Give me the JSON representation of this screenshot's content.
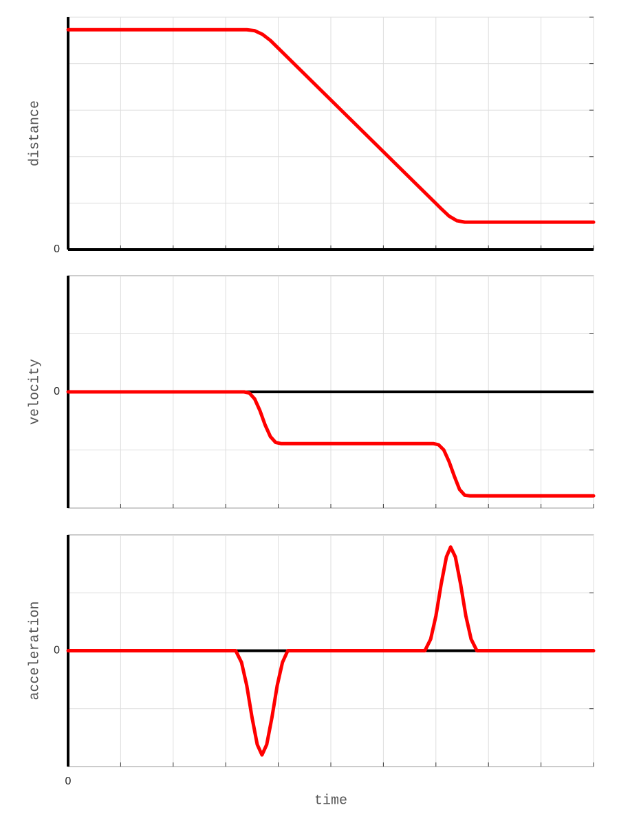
{
  "chart_data": [
    {
      "type": "line",
      "ylabel": "distance",
      "xlim": [
        0,
        10
      ],
      "ylim": [
        0,
        5
      ],
      "yticks": [
        0
      ],
      "ygrid": [
        1,
        2,
        3,
        4,
        5
      ],
      "xgrid": [
        1,
        2,
        3,
        4,
        5,
        6,
        7,
        8,
        9,
        10
      ],
      "zero_line": true,
      "grid": true,
      "series": [
        {
          "color": "#ff0000",
          "x": [
            0,
            3.4,
            3.55,
            3.7,
            3.85,
            7.1,
            7.25,
            7.4,
            7.55,
            10
          ],
          "values": [
            4.73,
            4.73,
            4.71,
            4.63,
            4.5,
            0.88,
            0.72,
            0.62,
            0.59,
            0.59
          ]
        }
      ]
    },
    {
      "type": "line",
      "ylabel": "velocity",
      "xlim": [
        0,
        10
      ],
      "ylim": [
        -2,
        2
      ],
      "yticks": [
        0
      ],
      "ygrid": [
        -1,
        1
      ],
      "xgrid": [
        1,
        2,
        3,
        4,
        5,
        6,
        7,
        8,
        9,
        10
      ],
      "zero_line": true,
      "grid": true,
      "series": [
        {
          "color": "#ff0000",
          "x": [
            0,
            3.35,
            3.45,
            3.55,
            3.65,
            3.75,
            3.85,
            3.95,
            4.05,
            6.95,
            7.05,
            7.15,
            7.25,
            7.35,
            7.45,
            7.55,
            7.65,
            10
          ],
          "values": [
            0,
            0,
            -0.02,
            -0.12,
            -0.32,
            -0.57,
            -0.77,
            -0.87,
            -0.89,
            -0.89,
            -0.91,
            -1.0,
            -1.2,
            -1.45,
            -1.68,
            -1.78,
            -1.79,
            -1.79
          ]
        }
      ]
    },
    {
      "type": "line",
      "ylabel": "acceleration",
      "xlabel": "time",
      "xlim": [
        0,
        10
      ],
      "ylim": [
        -2,
        2
      ],
      "yticks": [
        0
      ],
      "xticks": [
        0
      ],
      "ygrid": [
        -1,
        1
      ],
      "xgrid": [
        1,
        2,
        3,
        4,
        5,
        6,
        7,
        8,
        9,
        10
      ],
      "zero_line": true,
      "grid": true,
      "series": [
        {
          "color": "#ff0000",
          "x": [
            0,
            3.19,
            3.3,
            3.4,
            3.5,
            3.6,
            3.69,
            3.78,
            3.88,
            3.98,
            4.08,
            4.18,
            6.79,
            6.9,
            7.0,
            7.1,
            7.2,
            7.28,
            7.37,
            7.47,
            7.57,
            7.67,
            7.78,
            10
          ],
          "values": [
            0,
            0,
            -0.2,
            -0.6,
            -1.15,
            -1.62,
            -1.8,
            -1.62,
            -1.15,
            -0.6,
            -0.2,
            0,
            0,
            0.2,
            0.6,
            1.15,
            1.62,
            1.79,
            1.62,
            1.15,
            0.6,
            0.2,
            0,
            0
          ]
        }
      ]
    }
  ]
}
